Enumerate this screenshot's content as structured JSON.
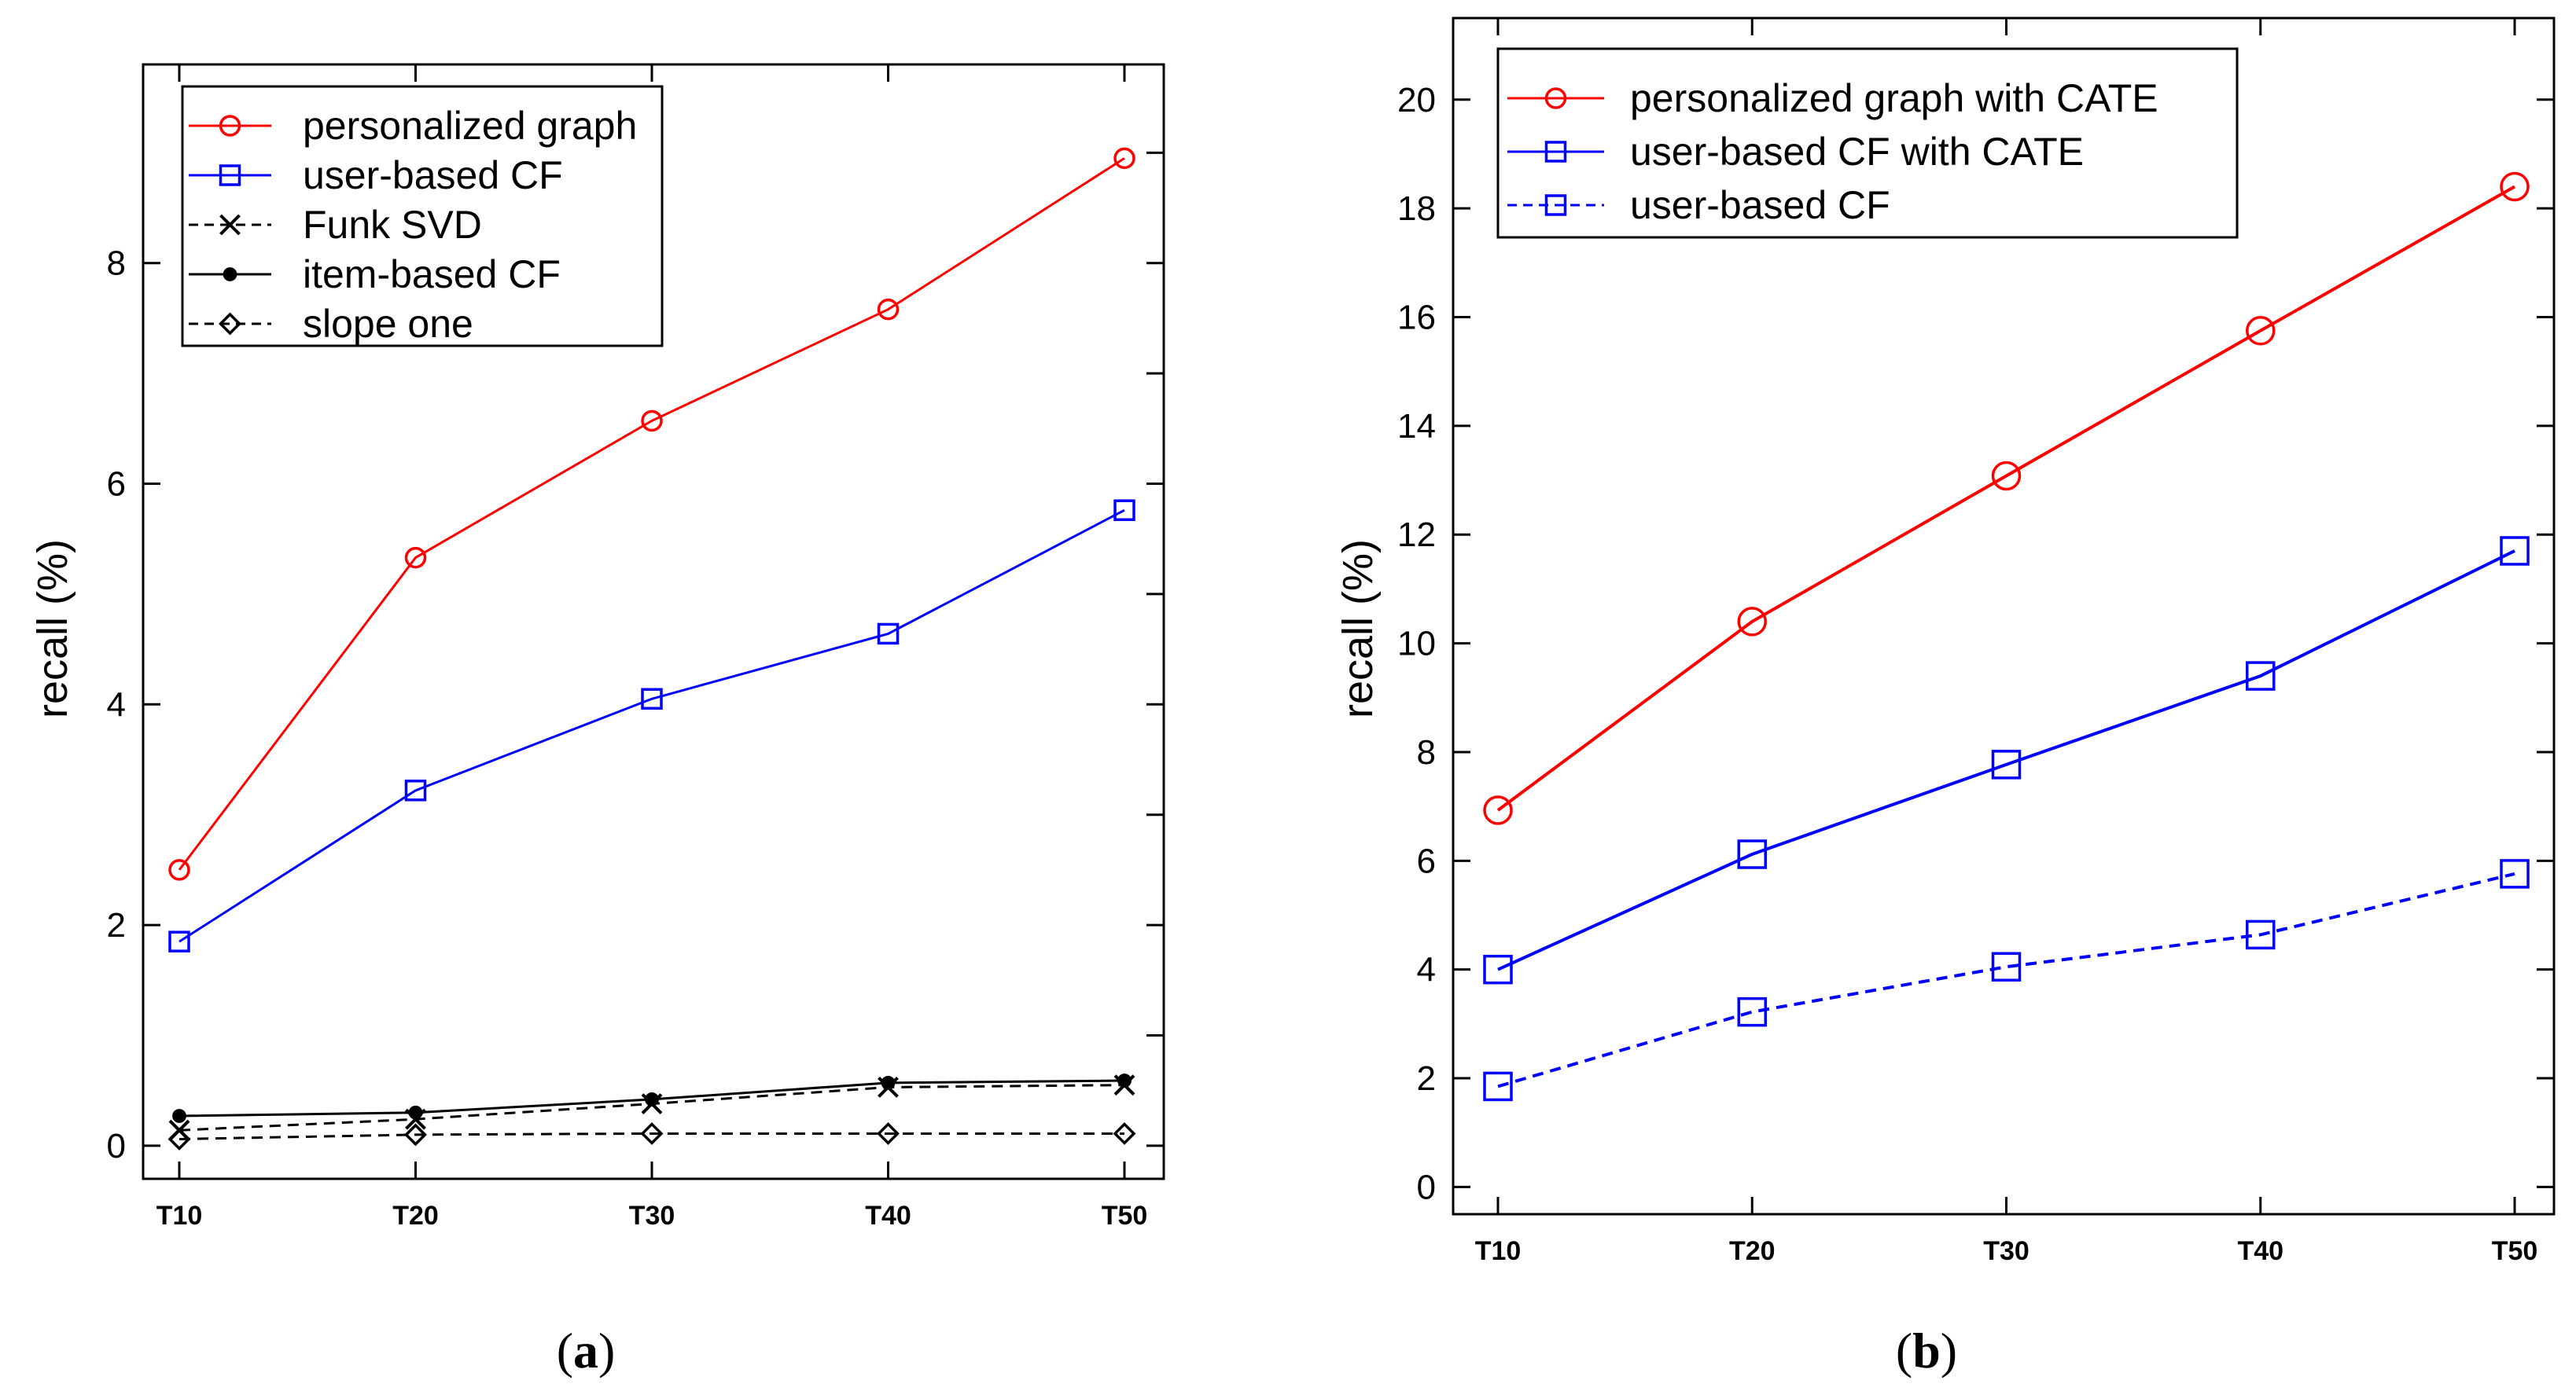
{
  "chart_data": [
    {
      "id": "a",
      "type": "line",
      "caption_label": "a",
      "ylabel": "recall (%)",
      "xlabel": "",
      "categories": [
        "T10",
        "T20",
        "T30",
        "T40",
        "T50"
      ],
      "ylim": [
        -0.3,
        9.8
      ],
      "yticks": [
        0,
        2,
        4,
        6,
        8
      ],
      "grid": false,
      "legend_position": "top-left",
      "series": [
        {
          "name": "personalized graph",
          "color": "#ff0000",
          "marker": "circle",
          "dash": "solid",
          "values": [
            2.5,
            5.33,
            6.57,
            7.58,
            8.95
          ]
        },
        {
          "name": "user-based CF",
          "color": "#0000ff",
          "marker": "square",
          "dash": "solid",
          "values": [
            1.85,
            3.22,
            4.05,
            4.64,
            5.76
          ]
        },
        {
          "name": "Funk SVD",
          "color": "#000000",
          "marker": "x",
          "dash": "dashed",
          "values": [
            0.14,
            0.24,
            0.38,
            0.53,
            0.55
          ]
        },
        {
          "name": "item-based CF",
          "color": "#000000",
          "marker": "dot",
          "dash": "solid",
          "values": [
            0.27,
            0.3,
            0.42,
            0.57,
            0.59
          ]
        },
        {
          "name": "slope one",
          "color": "#000000",
          "marker": "diamond",
          "dash": "dashed",
          "values": [
            0.06,
            0.1,
            0.11,
            0.11,
            0.11
          ]
        }
      ]
    },
    {
      "id": "b",
      "type": "line",
      "caption_label": "b",
      "ylabel": "recall (%)",
      "xlabel": "",
      "categories": [
        "T10",
        "T20",
        "T30",
        "T40",
        "T50"
      ],
      "ylim": [
        -0.5,
        21.5
      ],
      "yticks": [
        0,
        2,
        4,
        6,
        8,
        10,
        12,
        14,
        16,
        18,
        20
      ],
      "grid": false,
      "legend_position": "top-left",
      "series": [
        {
          "name": "personalized graph with CATE",
          "color": "#ff0000",
          "marker": "circle",
          "dash": "solid",
          "values": [
            6.93,
            10.4,
            13.08,
            15.75,
            18.4
          ]
        },
        {
          "name": "user-based CF with CATE",
          "color": "#0000ff",
          "marker": "square",
          "dash": "solid",
          "values": [
            4.0,
            6.12,
            7.77,
            9.4,
            11.7
          ]
        },
        {
          "name": "user-based CF",
          "color": "#0000ff",
          "marker": "square",
          "dash": "dashed",
          "values": [
            1.85,
            3.22,
            4.05,
            4.64,
            5.76
          ]
        }
      ]
    }
  ]
}
